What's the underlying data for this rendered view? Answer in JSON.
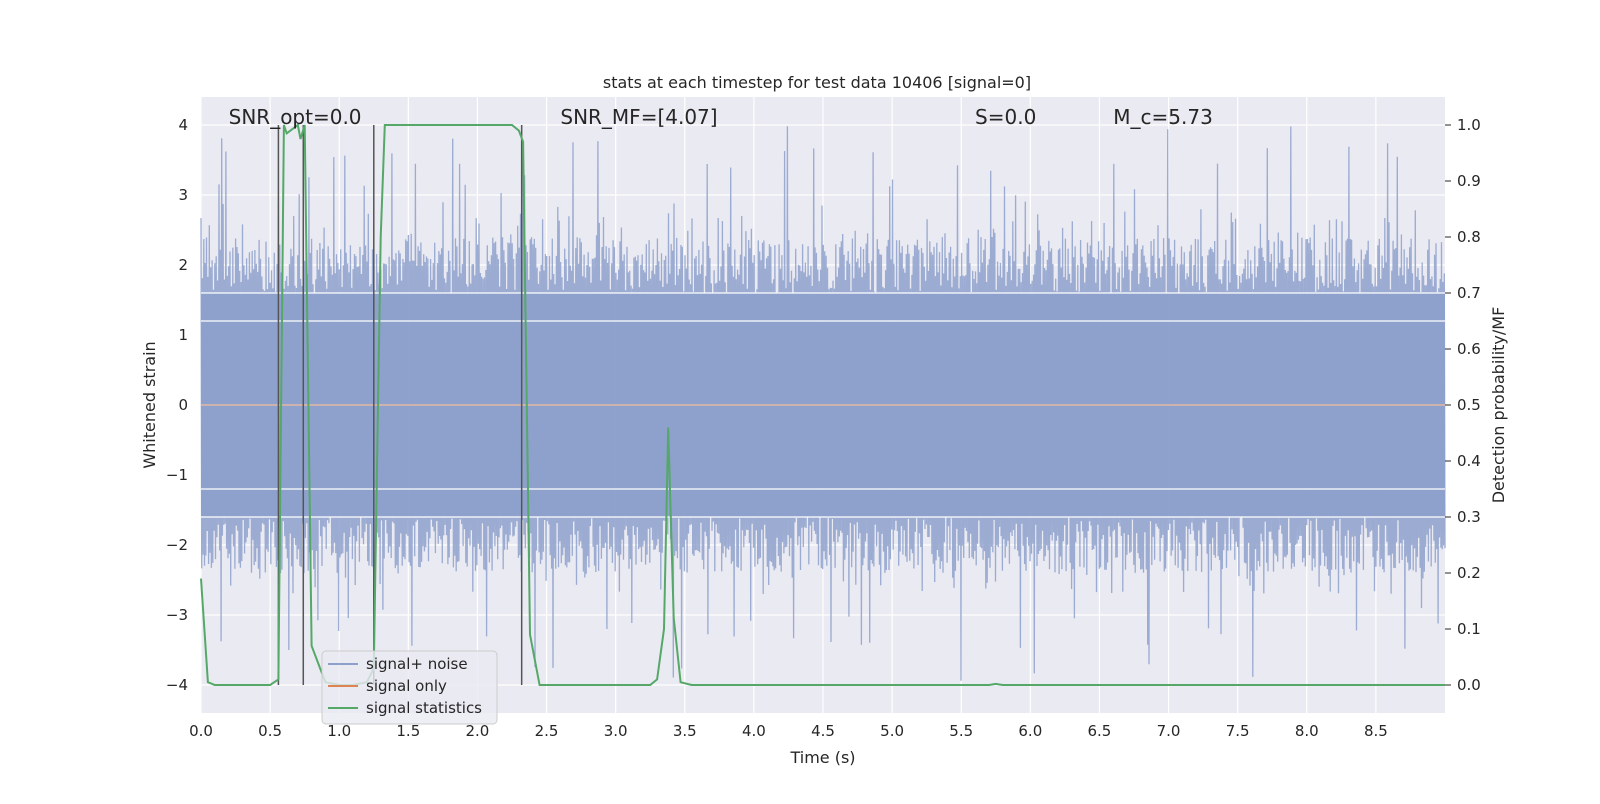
{
  "chart_data": {
    "type": "line",
    "title": "stats at each timestep for test data 10406 [signal=0]",
    "xlabel": "Time (s)",
    "ylabel_left": "Whitened strain",
    "ylabel_right": "Detection probability/MF",
    "xlim": [
      0.0,
      9.0
    ],
    "ylim_left": [
      -4.4,
      4.4
    ],
    "ylim_right": [
      -0.05,
      1.05
    ],
    "xticks": [
      0.0,
      0.5,
      1.0,
      1.5,
      2.0,
      2.5,
      3.0,
      3.5,
      4.0,
      4.5,
      5.0,
      5.5,
      6.0,
      6.5,
      7.0,
      7.5,
      8.0,
      8.5
    ],
    "xtick_labels": [
      "0.0",
      "0.5",
      "1.0",
      "1.5",
      "2.0",
      "2.5",
      "3.0",
      "3.5",
      "4.0",
      "4.5",
      "5.0",
      "5.5",
      "6.0",
      "6.5",
      "7.0",
      "7.5",
      "8.0",
      "8.5"
    ],
    "yticks_left": [
      -4,
      -3,
      -2,
      -1,
      0,
      1,
      2,
      3,
      4
    ],
    "ytick_labels_left": [
      "−4",
      "−3",
      "−2",
      "−1",
      "0",
      "1",
      "2",
      "3",
      "4"
    ],
    "yticks_right": [
      0.0,
      0.1,
      0.2,
      0.3,
      0.4,
      0.5,
      0.6,
      0.7,
      0.8,
      0.9,
      1.0
    ],
    "ytick_labels_right": [
      "0.0",
      "0.1",
      "0.2",
      "0.3",
      "0.4",
      "0.5",
      "0.6",
      "0.7",
      "0.8",
      "0.9",
      "1.0"
    ],
    "grid": true,
    "legend_placement": "lower-left",
    "annotations": [
      {
        "text": "SNR_opt=0.0",
        "x": 0.2
      },
      {
        "text": "SNR_MF=[4.07]",
        "x": 2.6
      },
      {
        "text": "S=0.0",
        "x": 5.6
      },
      {
        "text": "M_c=5.73",
        "x": 6.6
      }
    ],
    "series": [
      {
        "name": "signal+ noise",
        "axis": "left",
        "color": "#8da0cb",
        "description_type": "noise",
        "noise_envelope": {
          "core_abs": 1.6,
          "peak_max": 4.0,
          "peak_min": -4.0
        }
      },
      {
        "name": "signal only",
        "axis": "left",
        "color": "#dd8452",
        "x": [
          0.0,
          9.0
        ],
        "y": [
          0.0,
          0.0
        ]
      },
      {
        "name": "signal statistics",
        "axis": "right",
        "color": "#55a868",
        "x": [
          0.0,
          0.05,
          0.1,
          0.5,
          0.56,
          0.6,
          0.62,
          0.7,
          0.72,
          0.75,
          0.8,
          0.9,
          1.0,
          1.1,
          1.2,
          1.25,
          1.3,
          1.33,
          2.0,
          2.25,
          2.3,
          2.33,
          2.38,
          2.45,
          3.0,
          3.25,
          3.3,
          3.35,
          3.38,
          3.42,
          3.47,
          3.55,
          5.7,
          5.75,
          5.8,
          9.0
        ],
        "y": [
          0.19,
          0.005,
          0.0,
          0.0,
          0.01,
          1.0,
          0.985,
          1.0,
          0.975,
          1.0,
          0.07,
          0.005,
          0.0,
          0.0,
          0.005,
          0.03,
          0.8,
          1.0,
          1.0,
          1.0,
          0.99,
          0.97,
          0.09,
          0.0,
          0.0,
          0.0,
          0.01,
          0.1,
          0.46,
          0.12,
          0.005,
          0.0,
          0.0,
          0.002,
          0.0,
          0.0
        ]
      }
    ],
    "vertical_markers": [
      0.56,
      0.74,
      1.25,
      2.32
    ]
  }
}
